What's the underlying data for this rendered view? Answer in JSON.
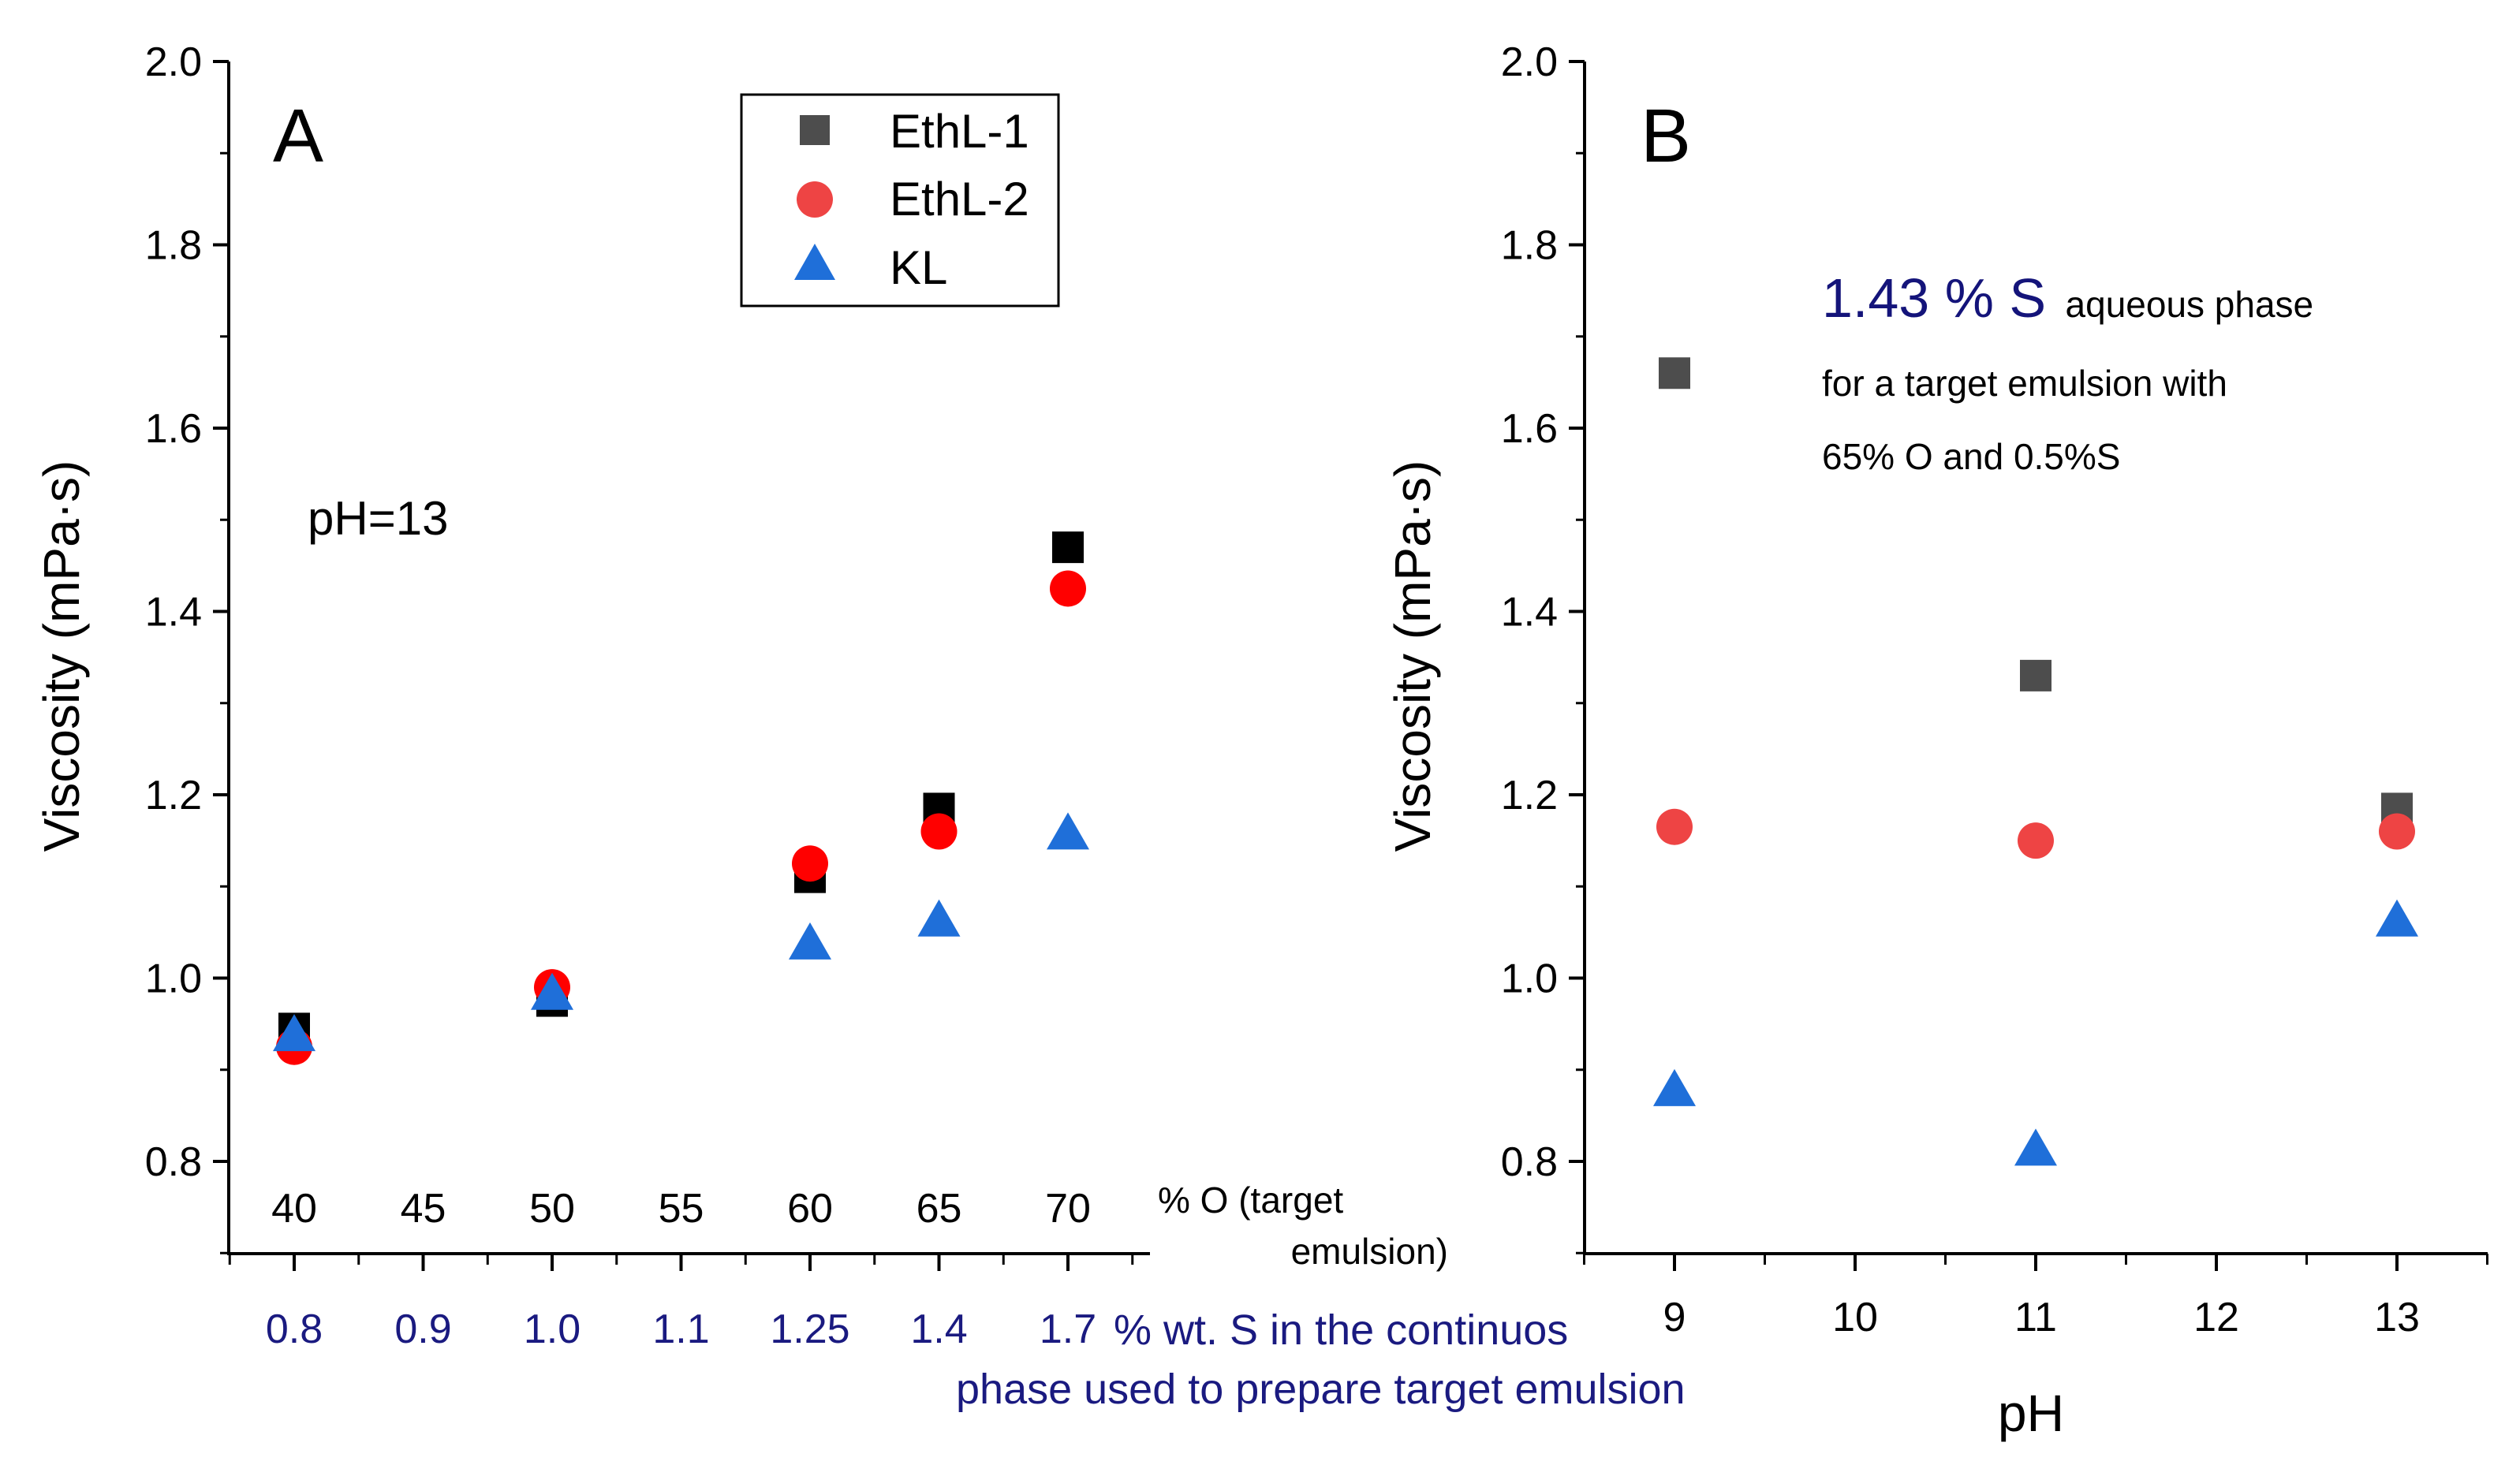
{
  "colors": {
    "axis": "#000000",
    "ethl1_a": "#000000",
    "ethl1_b": "#4d4d4d",
    "ethl2_a": "#ff0000",
    "ethl2_b": "#ee4444",
    "kl": "#1f6fd9",
    "secondary_axis_text": "#1a1a80",
    "annotation": "#14147a"
  },
  "chart_data": [
    {
      "panel_label": "A",
      "type": "scatter",
      "ylabel": "Viscosity (mPa·s)",
      "ylim": [
        0.7,
        2.0
      ],
      "yticks": [
        "2.0",
        "1.8",
        "1.6",
        "1.4",
        "1.2",
        "1.0",
        "0.8"
      ],
      "x_categories": [
        "0.8",
        "0.9",
        "1.0",
        "1.1",
        "1.25",
        "1.4",
        "1.7"
      ],
      "x_secondary_categories": [
        "40",
        "45",
        "50",
        "55",
        "60",
        "65",
        "70"
      ],
      "x_secondary_label": [
        "% O (target",
        "emulsion)"
      ],
      "xlabel": [
        "% wt. S in the continuos",
        "phase used to prepare target emulsion"
      ],
      "annotation": "pH=13",
      "legend": [
        "EthL-1",
        "EthL-2",
        "KL"
      ],
      "series": [
        {
          "name": "EthL-1",
          "marker": "square",
          "points": [
            {
              "x": "0.8",
              "y": 0.945
            },
            {
              "x": "1.0",
              "y": 0.975
            },
            {
              "x": "1.25",
              "y": 1.11
            },
            {
              "x": "1.4",
              "y": 1.185
            },
            {
              "x": "1.7",
              "y": 1.47
            }
          ]
        },
        {
          "name": "EthL-2",
          "marker": "circle",
          "points": [
            {
              "x": "0.8",
              "y": 0.925
            },
            {
              "x": "1.0",
              "y": 0.99
            },
            {
              "x": "1.25",
              "y": 1.125
            },
            {
              "x": "1.4",
              "y": 1.16
            },
            {
              "x": "1.7",
              "y": 1.425
            }
          ]
        },
        {
          "name": "KL",
          "marker": "triangle",
          "points": [
            {
              "x": "0.8",
              "y": 0.935
            },
            {
              "x": "1.0",
              "y": 0.98
            },
            {
              "x": "1.25",
              "y": 1.035
            },
            {
              "x": "1.4",
              "y": 1.06
            },
            {
              "x": "1.7",
              "y": 1.155
            }
          ]
        }
      ]
    },
    {
      "panel_label": "B",
      "type": "scatter",
      "ylabel": "Viscosity (mPa·s)",
      "xlabel": "pH",
      "ylim": [
        0.7,
        2.0
      ],
      "xlim": [
        8.5,
        13.5
      ],
      "yticks": [
        "2.0",
        "1.8",
        "1.6",
        "1.4",
        "1.2",
        "1.0",
        "0.8"
      ],
      "xticks": [
        "9",
        "10",
        "11",
        "12",
        "13"
      ],
      "annotation": {
        "big": "1.43 % S",
        "rest": "aqueous phase",
        "line2": "for a target emulsion with",
        "line3": "65% O and 0.5%S"
      },
      "series": [
        {
          "name": "EthL-1",
          "marker": "square",
          "points": [
            {
              "x": 9,
              "y": 1.66
            },
            {
              "x": 11,
              "y": 1.33
            },
            {
              "x": 13,
              "y": 1.185
            }
          ]
        },
        {
          "name": "EthL-2",
          "marker": "circle",
          "points": [
            {
              "x": 9,
              "y": 1.165
            },
            {
              "x": 11,
              "y": 1.15
            },
            {
              "x": 13,
              "y": 1.16
            }
          ]
        },
        {
          "name": "KL",
          "marker": "triangle",
          "points": [
            {
              "x": 9,
              "y": 0.875
            },
            {
              "x": 11,
              "y": 0.81
            },
            {
              "x": 13,
              "y": 1.06
            }
          ]
        }
      ]
    }
  ]
}
